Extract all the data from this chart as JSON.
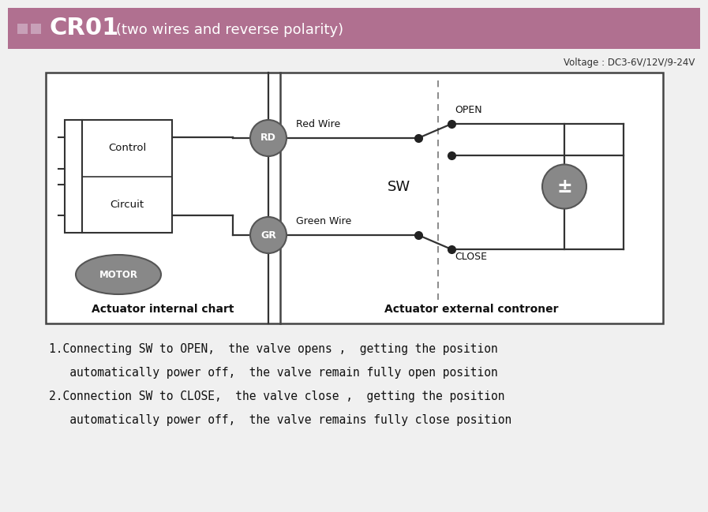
{
  "bg_color": "#f0f0f0",
  "header_color": "#b07090",
  "header_text": "CR01",
  "header_subtitle": "(two wires and reverse polarity)",
  "voltage_text": "Voltage : DC3-6V/12V/9-24V",
  "diagram_box_color": "#ffffff",
  "diagram_border_color": "#444444",
  "label_actuator_internal": "Actuator internal chart",
  "label_actuator_external": "Actuator external controner",
  "text_line1": "1.Connecting SW to OPEN,  the valve opens ,  getting the position",
  "text_line2": "   automatically power off,  the valve remain fully open position",
  "text_line3": "2.Connection SW to CLOSE,  the valve close ,  getting the position",
  "text_line4": "   automatically power off,  the valve remains fully close position"
}
